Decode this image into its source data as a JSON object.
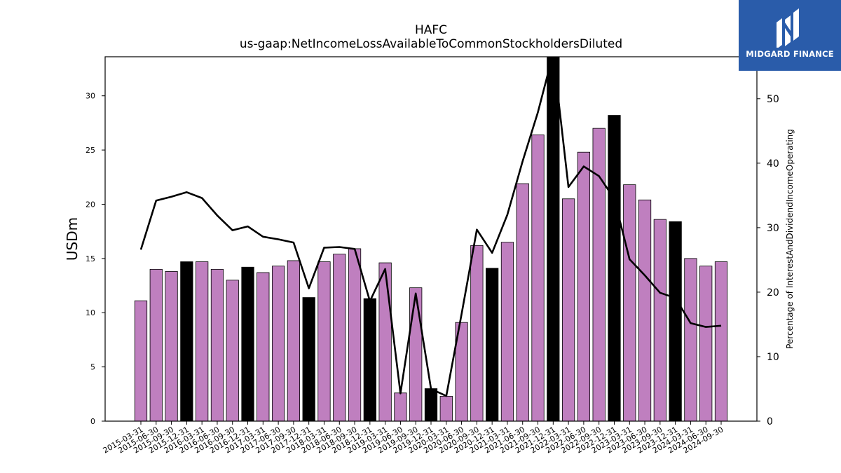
{
  "logo": {
    "text": "MIDGARD FINANCE"
  },
  "chart_data": {
    "type": "bar",
    "title": "HAFC",
    "subtitle": "us-gaap:NetIncomeLossAvailableToCommonStockholdersDiluted",
    "ylabel": "USDm",
    "y2label": "Percentage of InterestAndDividendIncomeOperating",
    "ylim": [
      0,
      33.6
    ],
    "y2lim": [
      0,
      56.5
    ],
    "yticks": [
      0,
      5,
      10,
      15,
      20,
      25,
      30
    ],
    "y2ticks": [
      0,
      10,
      20,
      30,
      40,
      50
    ],
    "categories": [
      "2015-03-31",
      "2015-06-30",
      "2015-09-30",
      "2015-12-31",
      "2016-03-31",
      "2016-06-30",
      "2016-09-30",
      "2016-12-31",
      "2017-03-31",
      "2017-06-30",
      "2017-09-30",
      "2017-12-31",
      "2018-03-31",
      "2018-06-30",
      "2018-09-30",
      "2018-12-31",
      "2019-03-31",
      "2019-06-30",
      "2019-09-30",
      "2019-12-31",
      "2020-03-31",
      "2020-06-30",
      "2020-09-30",
      "2020-12-31",
      "2021-03-31",
      "2021-06-30",
      "2021-09-30",
      "2021-12-31",
      "2022-03-31",
      "2022-06-30",
      "2022-09-30",
      "2022-12-31",
      "2023-03-31",
      "2023-06-30",
      "2023-09-30",
      "2023-12-31",
      "2024-03-31",
      "2024-06-30",
      "2024-09-30"
    ],
    "series": [
      {
        "type": "bar",
        "values": [
          11.1,
          14.0,
          13.8,
          14.7,
          14.7,
          14.0,
          13.0,
          14.2,
          13.7,
          14.3,
          14.8,
          11.4,
          14.7,
          15.4,
          15.9,
          11.3,
          14.6,
          2.6,
          12.3,
          3.0,
          2.3,
          9.1,
          16.2,
          14.1,
          16.5,
          21.9,
          26.4,
          33.6,
          20.5,
          24.8,
          27.0,
          28.2,
          21.8,
          20.4,
          18.6,
          18.4,
          15.0,
          14.3,
          14.7
        ],
        "colors": [
          "#bf7fbf",
          "#bf7fbf",
          "#bf7fbf",
          "#000000",
          "#bf7fbf",
          "#bf7fbf",
          "#bf7fbf",
          "#000000",
          "#bf7fbf",
          "#bf7fbf",
          "#bf7fbf",
          "#000000",
          "#bf7fbf",
          "#bf7fbf",
          "#bf7fbf",
          "#000000",
          "#bf7fbf",
          "#bf7fbf",
          "#bf7fbf",
          "#000000",
          "#bf7fbf",
          "#bf7fbf",
          "#bf7fbf",
          "#000000",
          "#bf7fbf",
          "#bf7fbf",
          "#bf7fbf",
          "#000000",
          "#bf7fbf",
          "#bf7fbf",
          "#bf7fbf",
          "#000000",
          "#bf7fbf",
          "#bf7fbf",
          "#bf7fbf",
          "#000000",
          "#bf7fbf",
          "#bf7fbf",
          "#bf7fbf"
        ]
      },
      {
        "type": "line",
        "axis": "right",
        "color": "#000000",
        "values": [
          26.6,
          34.2,
          34.8,
          35.5,
          34.6,
          31.9,
          29.6,
          30.2,
          28.6,
          28.2,
          27.7,
          20.6,
          26.9,
          27.0,
          26.7,
          18.6,
          23.6,
          4.3,
          19.8,
          5.0,
          3.9,
          16.6,
          29.7,
          26.1,
          32.0,
          40.3,
          47.9,
          57.0,
          36.3,
          39.5,
          38.0,
          34.5,
          25.1,
          22.6,
          19.9,
          19.1,
          15.2,
          14.6,
          14.8
        ]
      }
    ],
    "colors": {
      "bar": "#bf7fbf",
      "bar_highlight": "#000000",
      "line": "#000000",
      "logo_bg": "#2a5caa"
    },
    "grid": false,
    "legend": "none"
  }
}
